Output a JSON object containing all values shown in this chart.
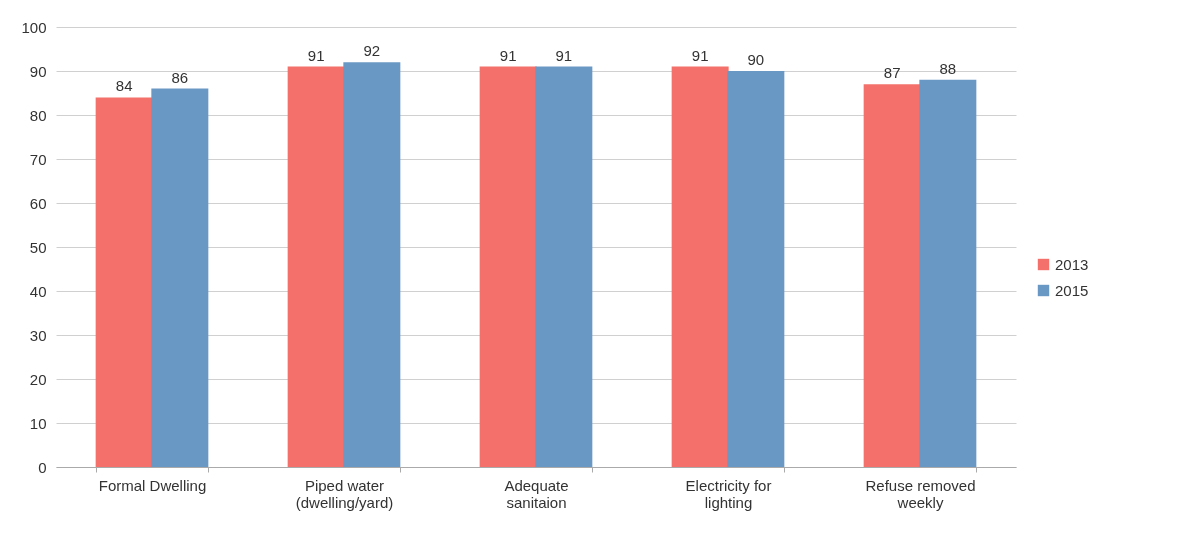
{
  "chart_data": {
    "type": "bar",
    "categories": [
      "Formal Dwelling",
      "Piped water (dwelling/yard)",
      "Adequate sanitaion",
      "Electricity for lighting",
      "Refuse removed weekly"
    ],
    "series": [
      {
        "name": "2013",
        "color": "#f3716a",
        "values": [
          84,
          91,
          91,
          91,
          87
        ]
      },
      {
        "name": "2015",
        "color": "#6a98c4",
        "values": [
          86,
          92,
          91,
          90,
          88
        ]
      }
    ],
    "ylim": [
      0,
      100
    ],
    "yticks": [
      0,
      10,
      20,
      30,
      40,
      50,
      60,
      70,
      80,
      90,
      100
    ],
    "grid": "y",
    "legend": "right",
    "data_labels": true
  }
}
